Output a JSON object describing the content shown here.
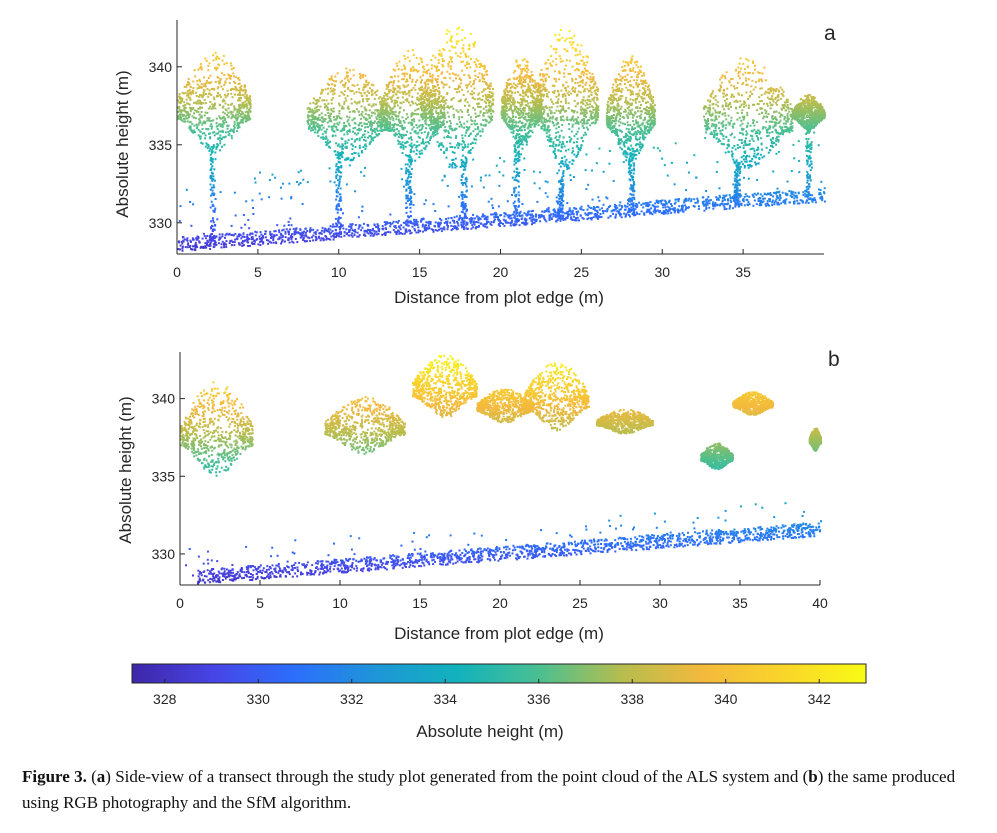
{
  "chart_data": [
    {
      "type": "scatter",
      "panel_label": "a",
      "xlabel": "Distance from plot edge (m)",
      "ylabel": "Absolute height (m)",
      "xlim": [
        0,
        40
      ],
      "ylim": [
        328,
        343
      ],
      "xticks": [
        "0",
        "5",
        "10",
        "15",
        "20",
        "25",
        "30",
        "35"
      ],
      "yticks": [
        "330",
        "335",
        "340"
      ],
      "grid": false,
      "ground_line": {
        "x": [
          0,
          40
        ],
        "y": [
          328.4,
          331.6
        ]
      },
      "canopy_clusters": [
        {
          "x": [
            0,
            4.5
          ],
          "base": 334.5,
          "top": 341.2
        },
        {
          "x": [
            8,
            13
          ],
          "base": 334.0,
          "top": 340.2
        },
        {
          "x": [
            12.5,
            16.5
          ],
          "base": 334.0,
          "top": 341.2
        },
        {
          "x": [
            15,
            19.5
          ],
          "base": 333.5,
          "top": 343.0
        },
        {
          "x": [
            20,
            22.5
          ],
          "base": 334.8,
          "top": 340.7
        },
        {
          "x": [
            22,
            26
          ],
          "base": 333.5,
          "top": 342.8
        },
        {
          "x": [
            26.5,
            29.5
          ],
          "base": 334.0,
          "top": 340.8
        },
        {
          "x": [
            32.5,
            38
          ],
          "base": 333.5,
          "top": 340.8
        },
        {
          "x": [
            38,
            40
          ],
          "base": 336.0,
          "top": 338.3
        }
      ]
    },
    {
      "type": "scatter",
      "panel_label": "b",
      "xlabel": "Distance from plot edge (m)",
      "ylabel": "Absolute height (m)",
      "xlim": [
        0,
        40
      ],
      "ylim": [
        328,
        343
      ],
      "xticks": [
        "0",
        "5",
        "10",
        "15",
        "20",
        "25",
        "30",
        "35",
        "40"
      ],
      "yticks": [
        "330",
        "335",
        "340"
      ],
      "grid": false,
      "ground_line": {
        "x": [
          1,
          40
        ],
        "y": [
          328.3,
          331.4
        ]
      },
      "canopy_clusters": [
        {
          "x": [
            0,
            4.5
          ],
          "base": 335.0,
          "top": 341.2
        },
        {
          "x": [
            9,
            14
          ],
          "base": 336.5,
          "top": 340.2
        },
        {
          "x": [
            14.5,
            18.5
          ],
          "base": 338.8,
          "top": 343.0
        },
        {
          "x": [
            18.5,
            22
          ],
          "base": 338.5,
          "top": 340.7
        },
        {
          "x": [
            21.5,
            25.5
          ],
          "base": 338.0,
          "top": 342.5
        },
        {
          "x": [
            26,
            29.5
          ],
          "base": 337.8,
          "top": 339.4
        },
        {
          "x": [
            32.5,
            34.5
          ],
          "base": 335.5,
          "top": 337.2
        },
        {
          "x": [
            34.5,
            37
          ],
          "base": 339.0,
          "top": 340.5
        },
        {
          "x": [
            39.3,
            40
          ],
          "base": 336.7,
          "top": 338.2
        }
      ]
    }
  ],
  "colorbar": {
    "label": "Absolute height (m)",
    "range": [
      327.3,
      343
    ],
    "ticks": [
      "328",
      "330",
      "332",
      "334",
      "336",
      "338",
      "340",
      "342"
    ],
    "colors": [
      "#3e26a8",
      "#4745e5",
      "#2c6ffd",
      "#1e96d8",
      "#12b2bc",
      "#4bbf91",
      "#b5bd4e",
      "#f3b93d",
      "#f9d52a",
      "#f9fb15"
    ]
  },
  "caption": {
    "label": "Figure 3.",
    "open_a": " (",
    "a": "a",
    "text_a": ") Side-view of a transect through the study plot generated from the point cloud of the ALS system and (",
    "b": "b",
    "text_b": ") the same produced using RGB photography and the SfM algorithm."
  }
}
